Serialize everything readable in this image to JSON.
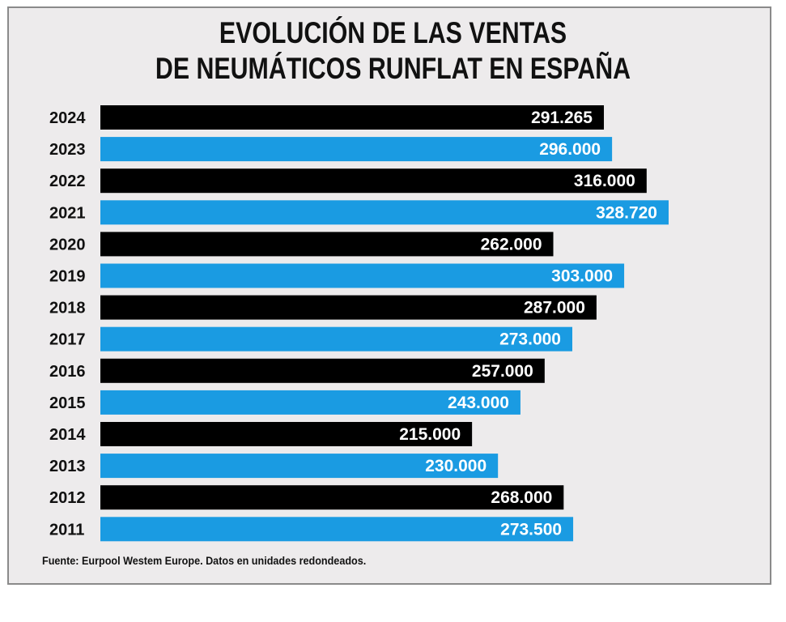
{
  "header": {
    "title_line1": "EVOLUCIÓN DE LAS VENTAS",
    "title_line2": "DE NEUMÁTICOS RUNFLAT EN ESPAÑA"
  },
  "footer": {
    "source": "Fuente:  Eurpool Westem Europe. Datos  en unidades redondeados."
  },
  "colors": {
    "dark": "#000000",
    "blue": "#1a9be2",
    "background": "#edebec"
  },
  "chart_data": {
    "type": "bar",
    "orientation": "horizontal",
    "title": "EVOLUCIÓN DE LAS VENTAS DE NEUMÁTICOS RUNFLAT EN ESPAÑA",
    "categories": [
      "2024",
      "2023",
      "2022",
      "2021",
      "2020",
      "2019",
      "2018",
      "2017",
      "2016",
      "2015",
      "2014",
      "2013",
      "2012",
      "2011"
    ],
    "values": [
      291265,
      296000,
      316000,
      328720,
      262000,
      303000,
      287000,
      273000,
      257000,
      243000,
      215000,
      230000,
      268000,
      273500
    ],
    "labels": [
      "291.265",
      "296.000",
      "316.000",
      "328.720",
      "262.000",
      "303.000",
      "287.000",
      "273.000",
      "257.000",
      "243.000",
      "215.000",
      "230.000",
      "268.000",
      "273.500"
    ],
    "bar_colors": [
      "#000000",
      "#1a9be2",
      "#000000",
      "#1a9be2",
      "#000000",
      "#1a9be2",
      "#000000",
      "#1a9be2",
      "#000000",
      "#1a9be2",
      "#000000",
      "#1a9be2",
      "#000000",
      "#1a9be2"
    ],
    "xlim": [
      0,
      328720
    ],
    "grid": false,
    "legend": "none"
  }
}
